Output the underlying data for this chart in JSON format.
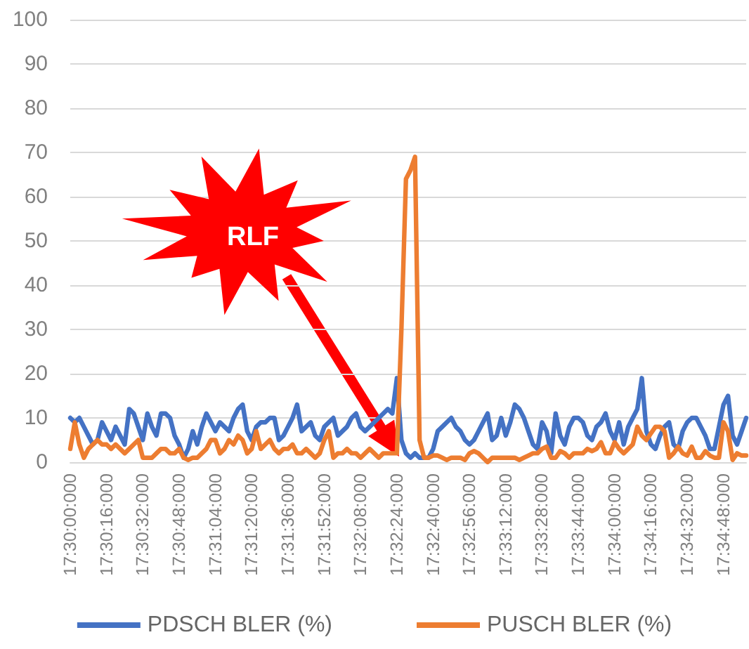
{
  "chart_data": {
    "type": "line",
    "categories": [
      "17:30:00:000",
      null,
      null,
      null,
      null,
      null,
      null,
      null,
      "17:30:16:000",
      null,
      null,
      null,
      null,
      null,
      null,
      null,
      "17:30:32:000",
      null,
      null,
      null,
      null,
      null,
      null,
      null,
      "17:30:48:000",
      null,
      null,
      null,
      null,
      null,
      null,
      null,
      "17:31:04:000",
      null,
      null,
      null,
      null,
      null,
      null,
      null,
      "17:31:20:000",
      null,
      null,
      null,
      null,
      null,
      null,
      null,
      "17:31:36:000",
      null,
      null,
      null,
      null,
      null,
      null,
      null,
      "17:31:52:000",
      null,
      null,
      null,
      null,
      null,
      null,
      null,
      "17:32:08:000",
      null,
      null,
      null,
      null,
      null,
      null,
      null,
      "17:32:24:000",
      null,
      null,
      null,
      null,
      null,
      null,
      null,
      "17:32:40:000",
      null,
      null,
      null,
      null,
      null,
      null,
      null,
      "17:32:56:000",
      null,
      null,
      null,
      null,
      null,
      null,
      null,
      "17:33:12:000",
      null,
      null,
      null,
      null,
      null,
      null,
      null,
      "17:33:28:000",
      null,
      null,
      null,
      null,
      null,
      null,
      null,
      "17:33:44:000",
      null,
      null,
      null,
      null,
      null,
      null,
      null,
      "17:34:00:000",
      null,
      null,
      null,
      null,
      null,
      null,
      null,
      "17:34:16:000",
      null,
      null,
      null,
      null,
      null,
      null,
      null,
      "17:34:32:000",
      null,
      null,
      null,
      null,
      null,
      null,
      null,
      "17:34:48:000",
      null,
      null,
      null,
      null,
      null
    ],
    "series": [
      {
        "name": "PDSCH BLER (%)",
        "color": "#4472c4",
        "values": [
          10,
          9,
          10,
          8,
          6,
          4,
          5,
          9,
          7,
          5,
          8,
          6,
          4,
          12,
          11,
          8,
          5,
          11,
          8,
          6,
          11,
          11,
          10,
          6,
          4,
          1,
          3,
          7,
          4,
          8,
          11,
          9,
          7,
          9,
          8,
          7,
          10,
          12,
          13,
          7,
          5,
          8,
          9,
          9,
          10,
          10,
          5,
          6,
          8,
          10,
          13,
          7,
          8,
          9,
          6,
          5,
          8,
          9,
          10,
          6,
          7,
          8,
          10,
          11,
          8,
          7,
          8,
          9,
          10,
          11,
          12,
          11,
          19,
          5,
          2,
          1,
          2,
          1,
          1,
          1,
          3,
          7,
          8,
          9,
          10,
          8,
          7,
          5,
          4,
          5,
          7,
          9,
          11,
          5,
          6,
          10,
          6,
          9,
          13,
          12,
          10,
          7,
          4,
          3,
          9,
          7,
          2,
          11,
          6,
          4,
          8,
          10,
          10,
          9,
          6,
          5,
          8,
          9,
          11,
          7,
          5,
          9,
          4,
          8,
          10,
          12,
          19,
          7,
          4,
          3,
          6,
          8,
          9,
          4,
          3,
          7,
          9,
          10,
          10,
          8,
          6,
          3,
          3,
          8,
          13,
          15,
          6,
          4,
          7,
          10
        ]
      },
      {
        "name": "PUSCH BLER (%)",
        "color": "#ed7d31",
        "values": [
          3,
          9,
          4,
          1,
          3,
          4,
          5,
          4,
          4,
          3,
          4,
          3,
          2,
          3,
          4,
          5,
          1,
          1,
          1,
          2,
          3,
          3,
          2,
          2,
          3,
          1,
          0.5,
          1,
          1,
          2,
          3,
          5,
          5,
          2,
          3,
          5,
          4,
          6,
          5,
          2,
          3,
          7,
          3,
          4,
          5,
          3,
          2,
          3,
          3,
          4,
          2,
          2,
          3,
          2,
          1,
          2,
          5,
          7,
          1,
          2,
          2,
          3,
          2,
          2,
          1,
          2,
          3,
          2,
          1,
          2,
          2,
          2,
          2,
          30,
          64,
          66,
          69,
          5,
          1,
          1,
          1.5,
          1.5,
          1,
          0.5,
          1,
          1,
          1,
          0.5,
          2,
          2.5,
          2,
          1,
          0,
          1,
          1,
          1,
          1,
          1,
          1,
          0.5,
          1,
          1.5,
          2,
          2,
          3,
          3.5,
          1,
          1,
          2.5,
          2,
          1,
          2,
          2,
          2,
          3,
          2.5,
          3,
          4.5,
          2,
          2,
          4.5,
          3,
          2,
          3,
          4,
          8,
          6,
          5,
          6.5,
          8,
          8,
          7,
          1,
          2,
          3.5,
          2,
          1.5,
          3.5,
          1,
          1,
          2.5,
          1.5,
          1,
          1,
          9,
          7,
          0.5,
          2,
          1.5,
          1.5
        ]
      }
    ],
    "ylim": [
      0,
      100
    ],
    "yticks": [
      0,
      10,
      20,
      30,
      40,
      50,
      60,
      70,
      80,
      90,
      100
    ],
    "grid": "y",
    "legend": "bottom",
    "marker": "none",
    "line_style": "solid",
    "annotations": [
      "RLF"
    ]
  }
}
